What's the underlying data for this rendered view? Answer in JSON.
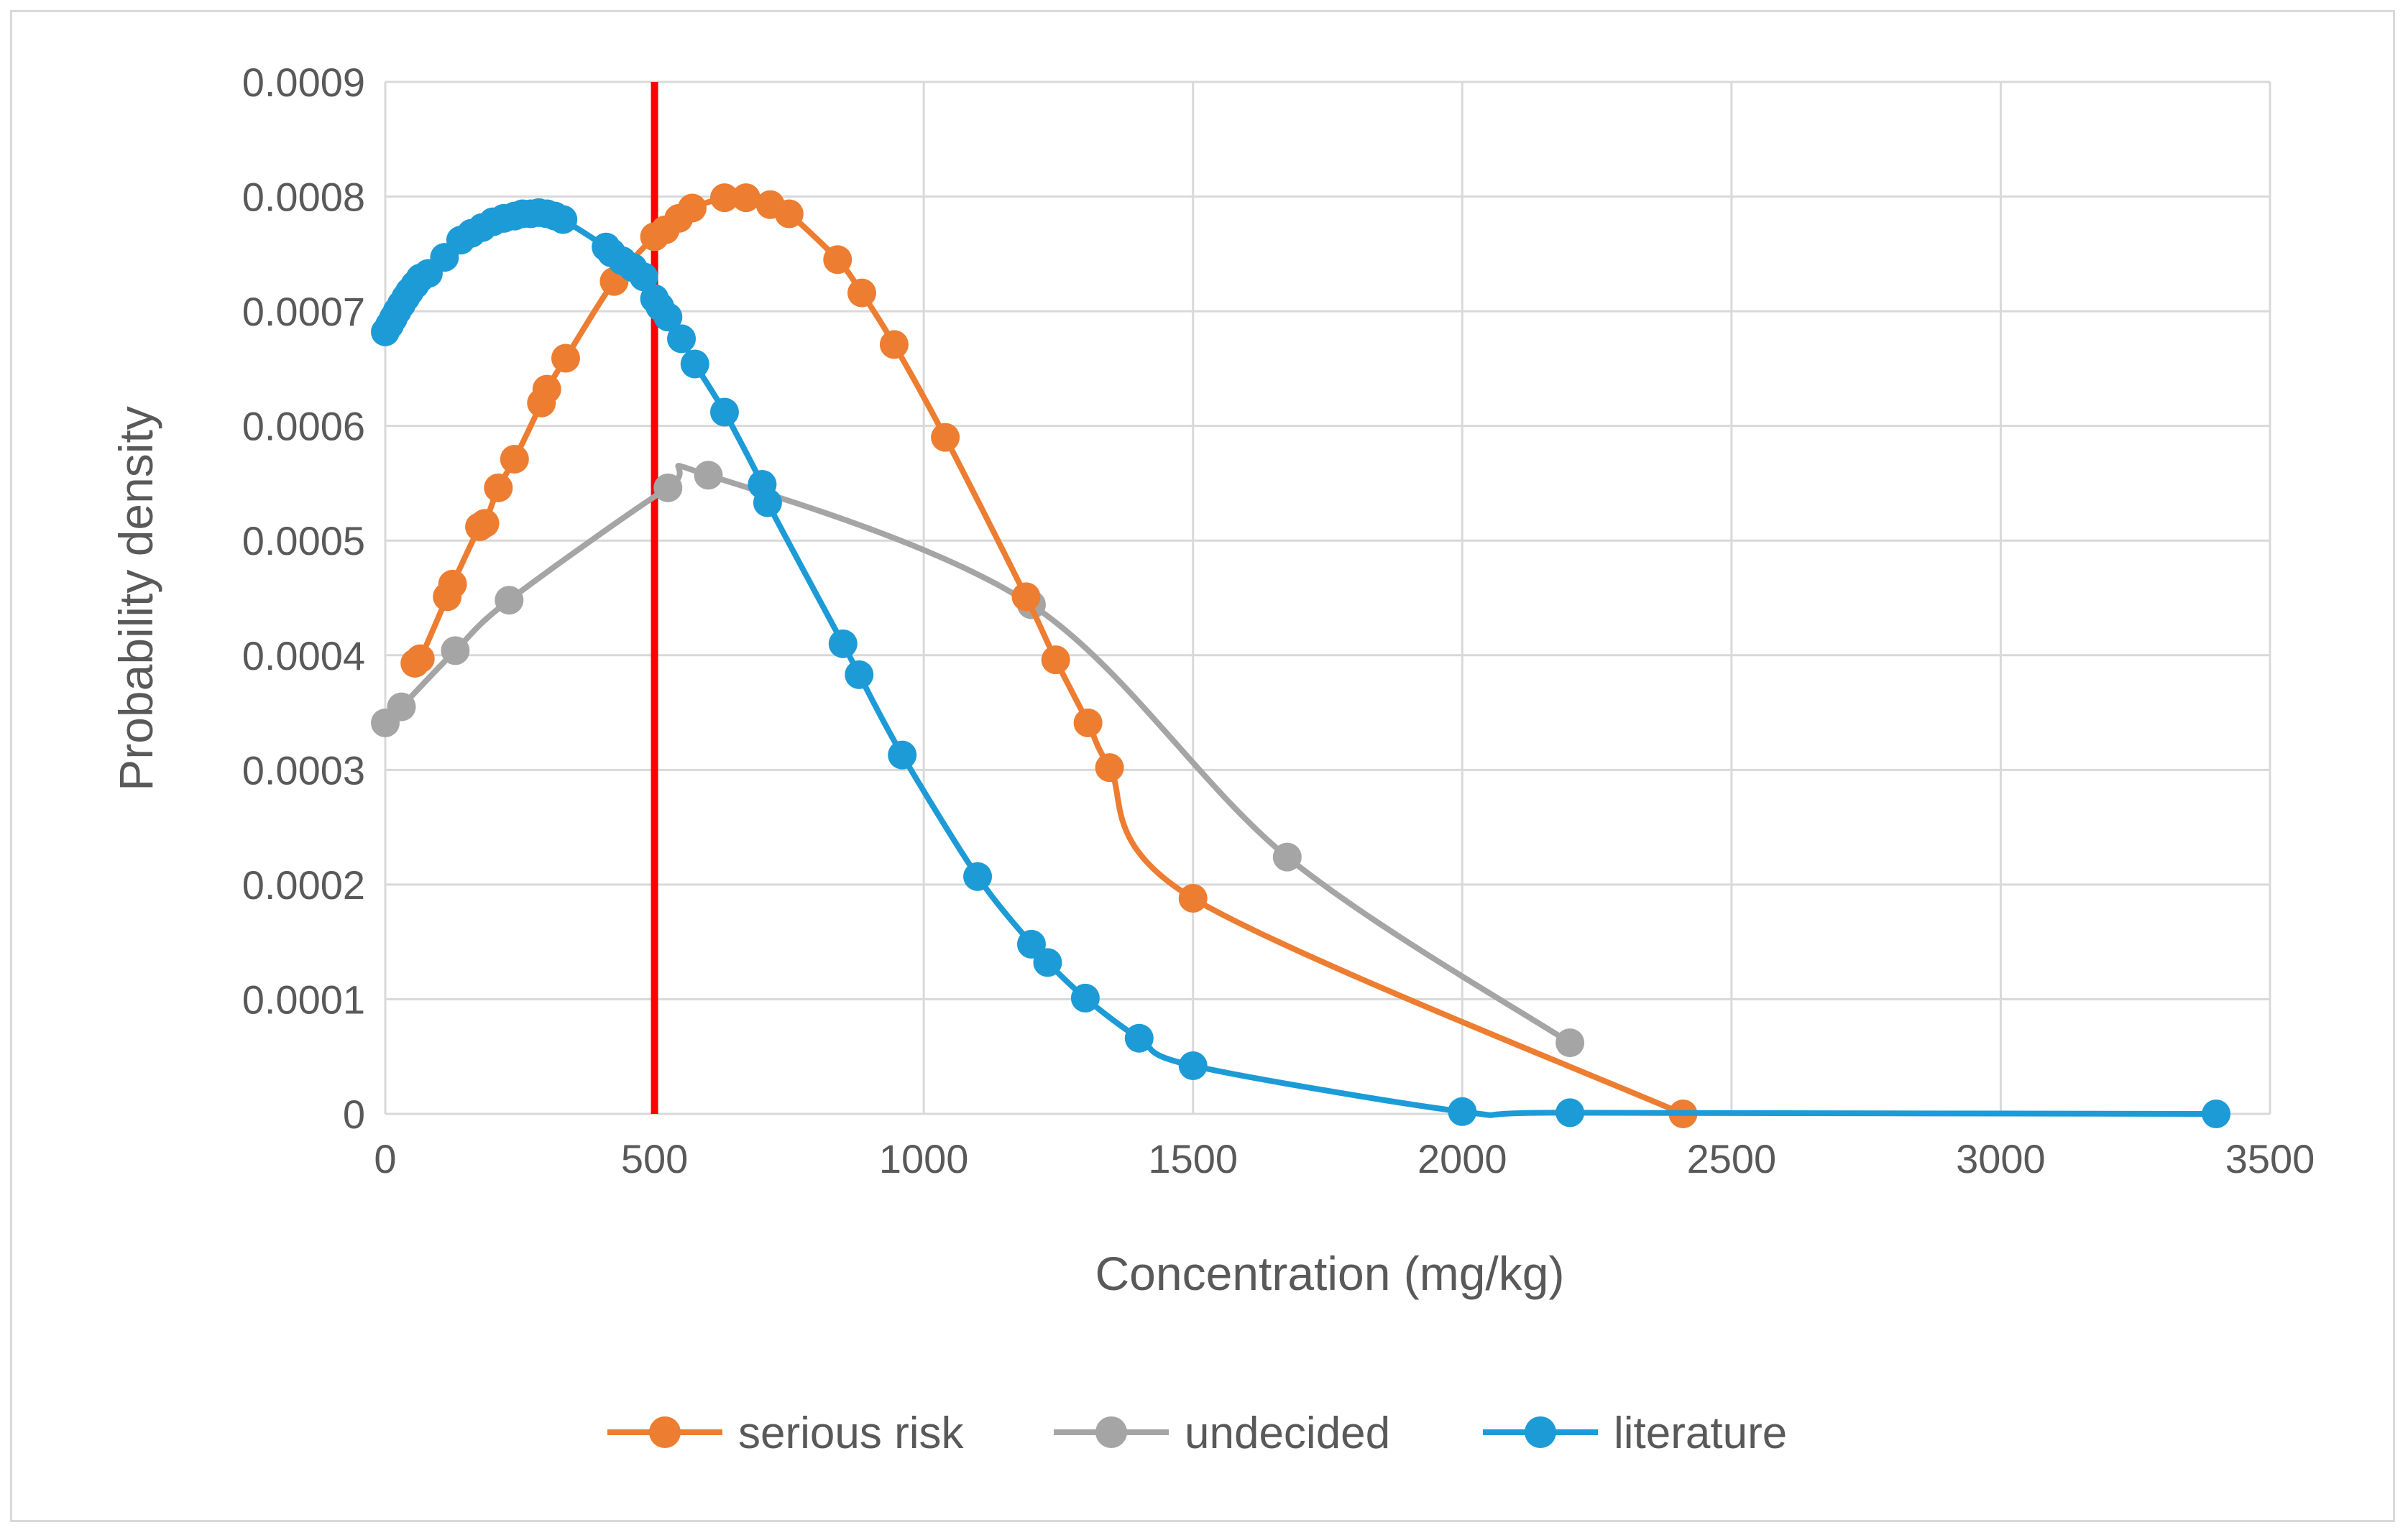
{
  "chart_data": {
    "type": "line",
    "title": "",
    "xlabel": "Concentration (mg/kg)",
    "ylabel": "Probability density",
    "xlim": [
      0,
      3500
    ],
    "ylim": [
      0,
      0.0009
    ],
    "xticks": [
      0,
      500,
      1000,
      1500,
      2000,
      2500,
      3000,
      3500
    ],
    "yticks": [
      0,
      0.0001,
      0.0002,
      0.0003,
      0.0004,
      0.0005,
      0.0006,
      0.0007,
      0.0008,
      0.0009
    ],
    "xtick_labels": [
      "0",
      "500",
      "1000",
      "1500",
      "2000",
      "2500",
      "3000",
      "3500"
    ],
    "ytick_labels": [
      "0",
      "0.0001",
      "0.0002",
      "0.0003",
      "0.0004",
      "0.0005",
      "0.0006",
      "0.0007",
      "0.0008",
      "0.0009"
    ],
    "grid": true,
    "legend_position": "bottom",
    "reference_line": {
      "x": 500,
      "color": "#ff0000"
    },
    "series": [
      {
        "name": "serious risk",
        "color": "#ed7d31",
        "x": [
          55,
          65,
          115,
          125,
          175,
          185,
          210,
          240,
          290,
          300,
          335,
          425,
          500,
          520,
          545,
          570,
          630,
          670,
          715,
          750,
          840,
          885,
          945,
          1040,
          1190,
          1245,
          1305,
          1345,
          1500,
          2410
        ],
        "y": [
          0.000393,
          0.000397,
          0.000451,
          0.000462,
          0.000512,
          0.000515,
          0.000546,
          0.000571,
          0.00062,
          0.000632,
          0.000659,
          0.000726,
          0.000765,
          0.000771,
          0.000781,
          0.00079,
          0.000799,
          0.000799,
          0.000793,
          0.000785,
          0.000745,
          0.000716,
          0.000671,
          0.00059,
          0.000451,
          0.000396,
          0.000341,
          0.000302,
          0.000188,
          0.0
        ]
      },
      {
        "name": "undecided",
        "color": "#a5a5a5",
        "x": [
          0,
          30,
          130,
          230,
          525,
          600,
          1200,
          1675,
          2200
        ],
        "y": [
          0.000341,
          0.000355,
          0.000404,
          0.000448,
          0.000546,
          0.000557,
          0.000444,
          0.000224,
          6.2e-05
        ]
      },
      {
        "name": "literature",
        "color": "#1c9bd7",
        "x": [
          0,
          8,
          15,
          22,
          30,
          38,
          45,
          55,
          65,
          80,
          110,
          140,
          160,
          180,
          200,
          220,
          240,
          255,
          270,
          285,
          300,
          315,
          330,
          410,
          420,
          440,
          460,
          480,
          500,
          510,
          525,
          550,
          575,
          630,
          700,
          710,
          850,
          880,
          960,
          1100,
          1200,
          1230,
          1300,
          1400,
          1500,
          2000,
          2200,
          3400
        ],
        "y": [
          0.000682,
          0.000688,
          0.000694,
          0.0007,
          0.000706,
          0.000712,
          0.000717,
          0.000723,
          0.000729,
          0.000733,
          0.000747,
          0.000762,
          0.000768,
          0.000773,
          0.000778,
          0.000781,
          0.000783,
          0.000785,
          0.000785,
          0.000786,
          0.000785,
          0.000783,
          0.00078,
          0.000756,
          0.000751,
          0.000744,
          0.000738,
          0.00073,
          0.000711,
          0.000704,
          0.000695,
          0.000676,
          0.000654,
          0.000612,
          0.000549,
          0.000533,
          0.00041,
          0.000383,
          0.000313,
          0.000207,
          0.000148,
          0.000132,
          0.000101,
          6.6e-05,
          4.2e-05,
          2e-06,
          1e-06,
          0.0
        ]
      }
    ]
  }
}
